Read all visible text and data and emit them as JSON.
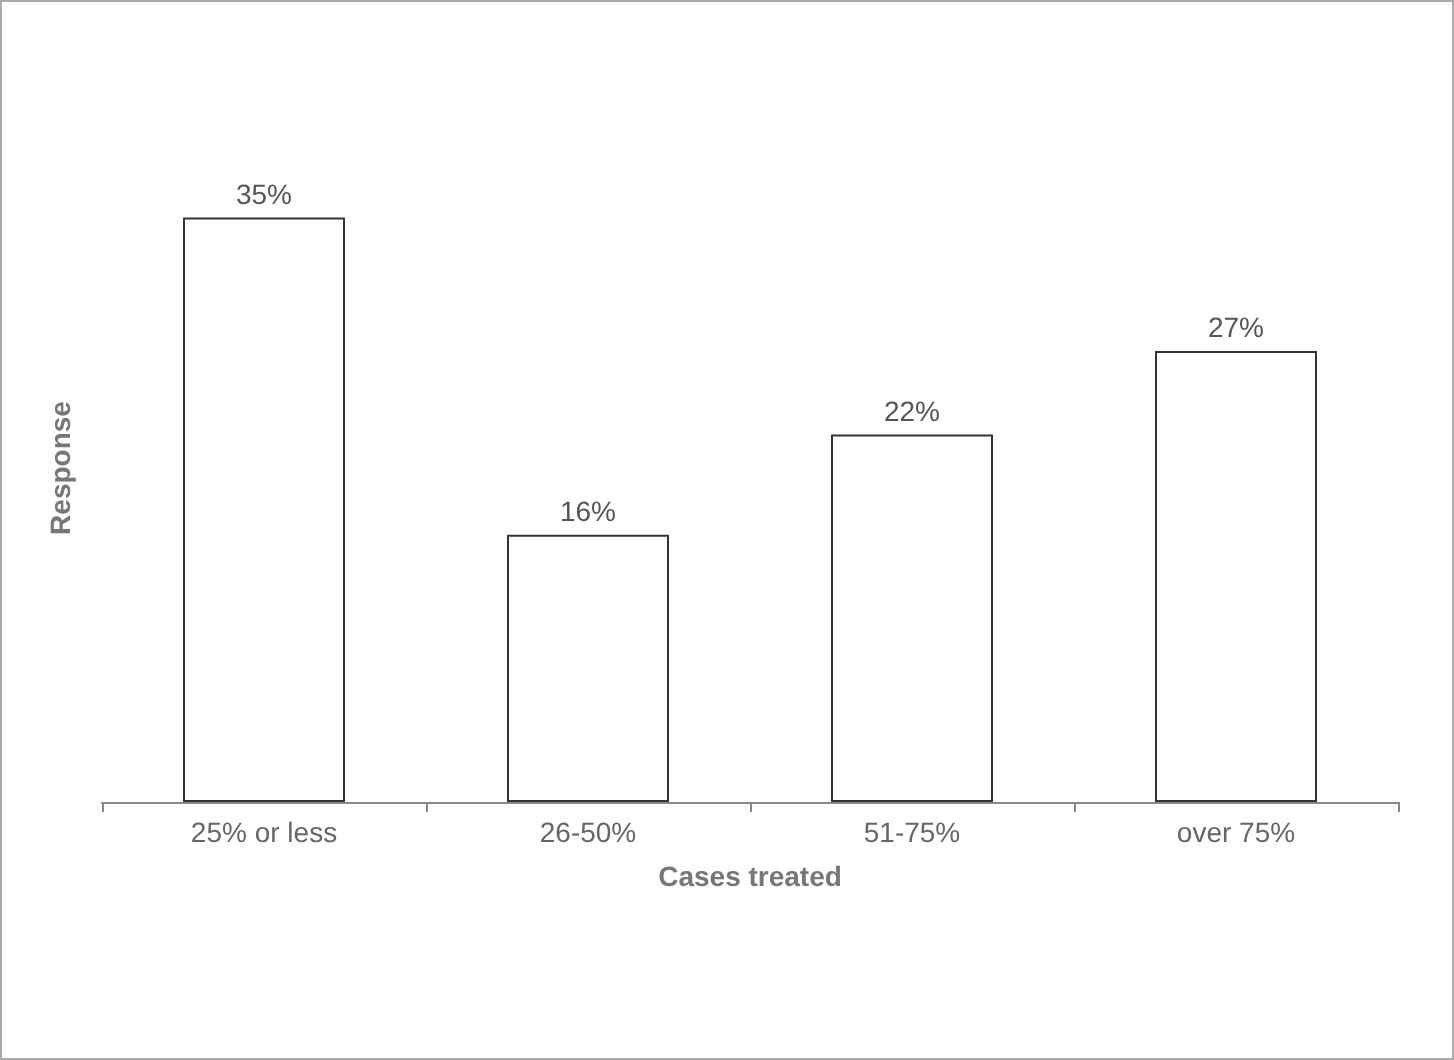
{
  "chart_data": {
    "type": "bar",
    "xlabel": "Cases treated",
    "ylabel": "Response",
    "categories": [
      "25% or less",
      "26-50%",
      "51-75%",
      "over 75%"
    ],
    "values": [
      35,
      16,
      22,
      27
    ],
    "value_labels": [
      "35%",
      "16%",
      "22%",
      "27%"
    ],
    "color": "#ffffff",
    "grid": false
  }
}
